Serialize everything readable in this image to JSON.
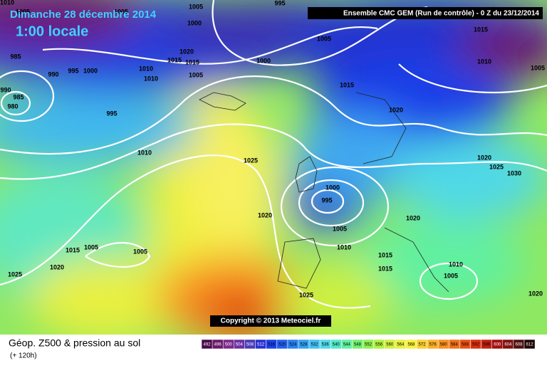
{
  "header": {
    "date": "Dimanche 28 décembre 2014",
    "local_time": "1:00 locale",
    "model": "Ensemble CMC GEM (Run de contrôle) - 0 Z du 23/12/2014"
  },
  "copyright": "Copyright © 2013 Meteociel.fr",
  "footer": {
    "title": "Géop. Z500 & pression au sol",
    "lead": "(+ 120h)"
  },
  "isobar_labels": [
    1010,
    1005,
    1005,
    1005,
    995,
    1000,
    1020,
    1015,
    1015,
    985,
    990,
    995,
    1000,
    990,
    985,
    980,
    1010,
    1010,
    1005,
    1000,
    1005,
    1015,
    1010,
    1005,
    1015,
    995,
    1020,
    1010,
    1025,
    1020,
    1025,
    1030,
    1000,
    995,
    1020,
    1005,
    1020,
    1015,
    1005,
    1005,
    1010,
    1015,
    1015,
    1010,
    1005,
    1020,
    1025,
    1025,
    1020
  ],
  "legend": {
    "values": [
      492,
      496,
      500,
      504,
      508,
      512,
      516,
      520,
      524,
      528,
      532,
      536,
      540,
      544,
      548,
      552,
      556,
      560,
      564,
      568,
      572,
      576,
      580,
      584,
      588,
      592,
      596,
      600,
      604,
      608,
      612
    ],
    "colors": [
      "#4a0a4a",
      "#6a1a6a",
      "#7a2a8a",
      "#6a30a0",
      "#4a3ab8",
      "#2a30d0",
      "#1a40e8",
      "#2060f0",
      "#2a80f0",
      "#30a0f0",
      "#40c0f0",
      "#50d8e8",
      "#50e8c8",
      "#60f0a0",
      "#70f070",
      "#90f050",
      "#b0f040",
      "#d0f040",
      "#e8f040",
      "#f8f040",
      "#f8d030",
      "#f8b028",
      "#f89020",
      "#f07018",
      "#e85010",
      "#d83010",
      "#c02010",
      "#a01010",
      "#801010",
      "#501010",
      "#200808"
    ]
  }
}
